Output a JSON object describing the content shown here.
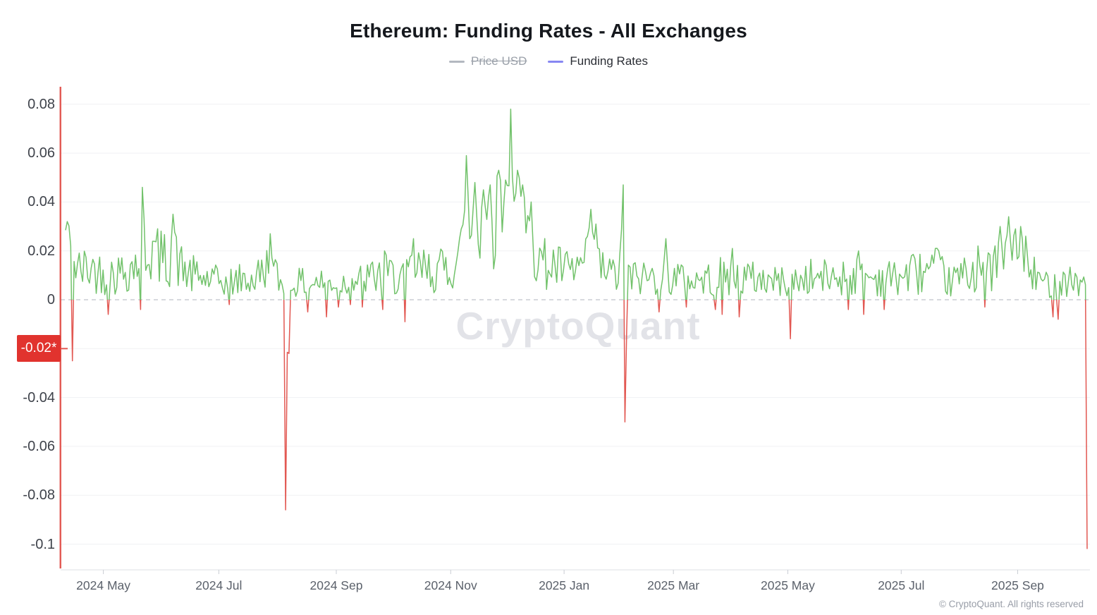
{
  "title": "Ethereum: Funding Rates - All Exchanges",
  "legend": {
    "price_usd": "Price USD",
    "funding_rates": "Funding Rates"
  },
  "watermark": "CryptoQuant",
  "footer": "© CryptoQuant. All rights reserved",
  "colors": {
    "line_green": "#72c26b",
    "line_red": "#e25852",
    "badge_red": "#e1332e",
    "zero_line": "#b0b5bf",
    "grid_line": "#f0f1f4",
    "axis_line": "#dcdfe4",
    "tick_mark": "#c9ccd3",
    "y_label": "#3f434b",
    "x_label": "#5b616b",
    "legend_active_marker": "#8787f2",
    "legend_disabled": "#9aa0a9",
    "watermark": "#e2e3e8"
  },
  "y_axis": {
    "badge": {
      "label": "-0.02*",
      "value": -0.02
    },
    "ticks": [
      {
        "value": 0.08,
        "label": "0.08"
      },
      {
        "value": 0.06,
        "label": "0.06"
      },
      {
        "value": 0.04,
        "label": "0.04"
      },
      {
        "value": 0.02,
        "label": "0.02"
      },
      {
        "value": 0,
        "label": "0"
      },
      {
        "value": -0.02,
        "label": "-0.02*",
        "badge": true
      },
      {
        "value": -0.04,
        "label": "-0.04"
      },
      {
        "value": -0.06,
        "label": "-0.06"
      },
      {
        "value": -0.08,
        "label": "-0.08"
      },
      {
        "value": -0.1,
        "label": "-0.1"
      }
    ]
  },
  "chart_data": {
    "type": "line",
    "title": "Ethereum: Funding Rates - All Exchanges",
    "series": [
      {
        "name": "Price USD",
        "visible": false
      },
      {
        "name": "Funding Rates",
        "visible": true,
        "positive_color": "#72c26b",
        "negative_color": "#e25852"
      }
    ],
    "ylim": [
      -0.1105,
      0.0871
    ],
    "zero_line": {
      "value": 0,
      "style": "dashed"
    },
    "latest_value": -0.02,
    "x_ticks": [
      {
        "t": 0.037,
        "label": "2024 May"
      },
      {
        "t": 0.15,
        "label": "2024 Jul"
      },
      {
        "t": 0.265,
        "label": "2024 Sep"
      },
      {
        "t": 0.377,
        "label": "2024 Nov"
      },
      {
        "t": 0.488,
        "label": "2025 Jan"
      },
      {
        "t": 0.595,
        "label": "2025 Mar"
      },
      {
        "t": 0.707,
        "label": "2025 May"
      },
      {
        "t": 0.818,
        "label": "2025 Jul"
      },
      {
        "t": 0.932,
        "label": "2025 Sep"
      }
    ],
    "anchors": [
      [
        0.0,
        0.022
      ],
      [
        0.012,
        0.012
      ],
      [
        0.026,
        0.013
      ],
      [
        0.039,
        0.01
      ],
      [
        0.053,
        0.011
      ],
      [
        0.067,
        0.014
      ],
      [
        0.075,
        0.02
      ],
      [
        0.084,
        0.02
      ],
      [
        0.098,
        0.016
      ],
      [
        0.106,
        0.018
      ],
      [
        0.115,
        0.012
      ],
      [
        0.129,
        0.009
      ],
      [
        0.143,
        0.008
      ],
      [
        0.157,
        0.007
      ],
      [
        0.17,
        0.008
      ],
      [
        0.184,
        0.008
      ],
      [
        0.2,
        0.014
      ],
      [
        0.208,
        0.008
      ],
      [
        0.215,
        0.005
      ],
      [
        0.226,
        0.007
      ],
      [
        0.246,
        0.007
      ],
      [
        0.267,
        0.007
      ],
      [
        0.288,
        0.008
      ],
      [
        0.308,
        0.01
      ],
      [
        0.329,
        0.01
      ],
      [
        0.341,
        0.012
      ],
      [
        0.353,
        0.012
      ],
      [
        0.367,
        0.012
      ],
      [
        0.381,
        0.015
      ],
      [
        0.393,
        0.026
      ],
      [
        0.405,
        0.03
      ],
      [
        0.419,
        0.032
      ],
      [
        0.429,
        0.03
      ],
      [
        0.436,
        0.034
      ],
      [
        0.447,
        0.028
      ],
      [
        0.457,
        0.022
      ],
      [
        0.467,
        0.015
      ],
      [
        0.481,
        0.013
      ],
      [
        0.495,
        0.011
      ],
      [
        0.514,
        0.016
      ],
      [
        0.526,
        0.012
      ],
      [
        0.536,
        0.01
      ],
      [
        0.546,
        0.011
      ],
      [
        0.557,
        0.009
      ],
      [
        0.571,
        0.009
      ],
      [
        0.588,
        0.011
      ],
      [
        0.605,
        0.008
      ],
      [
        0.626,
        0.008
      ],
      [
        0.647,
        0.01
      ],
      [
        0.667,
        0.009
      ],
      [
        0.688,
        0.008
      ],
      [
        0.709,
        0.007
      ],
      [
        0.729,
        0.009
      ],
      [
        0.75,
        0.009
      ],
      [
        0.771,
        0.01
      ],
      [
        0.792,
        0.009
      ],
      [
        0.812,
        0.009
      ],
      [
        0.833,
        0.011
      ],
      [
        0.854,
        0.012
      ],
      [
        0.864,
        0.007
      ],
      [
        0.874,
        0.009
      ],
      [
        0.893,
        0.012
      ],
      [
        0.909,
        0.014
      ],
      [
        0.924,
        0.016
      ],
      [
        0.935,
        0.014
      ],
      [
        0.947,
        0.01
      ],
      [
        0.957,
        0.007
      ],
      [
        0.968,
        0.006
      ],
      [
        0.981,
        0.009
      ],
      [
        0.992,
        0.007
      ],
      [
        1.0,
        0.005
      ]
    ],
    "spikes": [
      [
        0.001,
        0.032
      ],
      [
        0.075,
        0.046
      ],
      [
        0.106,
        0.035
      ],
      [
        0.2,
        0.027
      ],
      [
        0.313,
        0.02
      ],
      [
        0.341,
        0.025
      ],
      [
        0.393,
        0.059
      ],
      [
        0.4,
        0.048
      ],
      [
        0.409,
        0.045
      ],
      [
        0.415,
        0.047
      ],
      [
        0.424,
        0.053
      ],
      [
        0.431,
        0.049
      ],
      [
        0.436,
        0.078
      ],
      [
        0.442,
        0.053
      ],
      [
        0.447,
        0.047
      ],
      [
        0.455,
        0.04
      ],
      [
        0.514,
        0.037
      ],
      [
        0.519,
        0.031
      ],
      [
        0.546,
        0.047
      ],
      [
        0.588,
        0.025
      ],
      [
        0.652,
        0.021
      ],
      [
        0.776,
        0.02
      ],
      [
        0.828,
        0.018
      ],
      [
        0.854,
        0.02
      ],
      [
        0.893,
        0.022
      ],
      [
        0.915,
        0.03
      ],
      [
        0.924,
        0.034
      ],
      [
        0.93,
        0.029
      ],
      [
        0.935,
        0.03
      ],
      [
        0.94,
        0.026
      ]
    ],
    "negative_spikes": [
      [
        0.007,
        -0.025
      ],
      [
        0.041,
        -0.006
      ],
      [
        0.073,
        -0.004
      ],
      [
        0.16,
        -0.002
      ],
      [
        0.215,
        -0.086
      ],
      [
        0.219,
        -0.022
      ],
      [
        0.237,
        -0.005
      ],
      [
        0.255,
        -0.007
      ],
      [
        0.267,
        -0.003
      ],
      [
        0.278,
        -0.002
      ],
      [
        0.29,
        -0.003
      ],
      [
        0.311,
        -0.004
      ],
      [
        0.333,
        -0.009
      ],
      [
        0.546,
        -0.05
      ],
      [
        0.581,
        -0.005
      ],
      [
        0.607,
        -0.003
      ],
      [
        0.636,
        -0.004
      ],
      [
        0.643,
        -0.006
      ],
      [
        0.66,
        -0.007
      ],
      [
        0.71,
        -0.016
      ],
      [
        0.767,
        -0.004
      ],
      [
        0.782,
        -0.006
      ],
      [
        0.801,
        -0.004
      ],
      [
        0.9,
        -0.003
      ],
      [
        0.966,
        -0.007
      ],
      [
        0.972,
        -0.008
      ],
      [
        1.0,
        -0.102
      ]
    ],
    "left_edge_spike": {
      "t": -0.005,
      "full_height": true
    },
    "noise": {
      "seed": 42,
      "samples": 600
    }
  }
}
